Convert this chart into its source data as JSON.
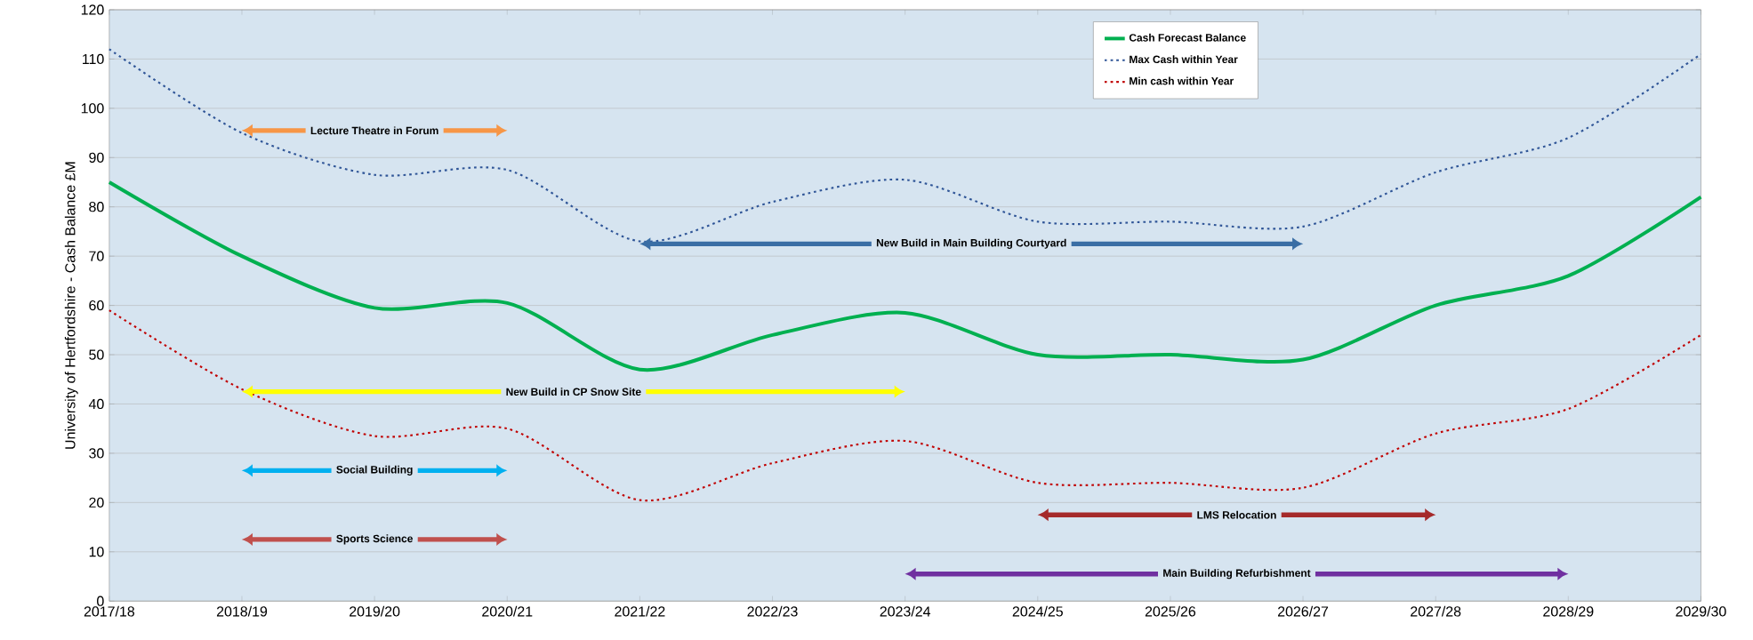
{
  "chart_data": {
    "type": "line",
    "ylabel": "University of Hertfordshire - Cash Balance £M",
    "categories": [
      "2017/18",
      "2018/19",
      "2019/20",
      "2020/21",
      "2021/22",
      "2022/23",
      "2023/24",
      "2024/25",
      "2025/26",
      "2026/27",
      "2027/28",
      "2028/29",
      "2029/30"
    ],
    "ylim": [
      0,
      120
    ],
    "yticks": [
      0,
      10,
      20,
      30,
      40,
      50,
      60,
      70,
      80,
      90,
      100,
      110,
      120
    ],
    "grid": "y",
    "legend": "top",
    "series": [
      {
        "name": "Cash Forecast Balance",
        "color": "#00b050",
        "line_style": "solid",
        "values": [
          85,
          70,
          59.5,
          60.5,
          47,
          54,
          58.5,
          50,
          50,
          49,
          60,
          66,
          82
        ]
      },
      {
        "name": "Max Cash within Year",
        "color": "#2f5597",
        "line_style": "dotted",
        "values": [
          112,
          95,
          86.5,
          87.5,
          73,
          81,
          85.5,
          77,
          77,
          76,
          87,
          94,
          111
        ]
      },
      {
        "name": "Min cash within Year",
        "color": "#c00000",
        "line_style": "dotted",
        "values": [
          59,
          43,
          33.5,
          35,
          20.5,
          28,
          32.5,
          24,
          24,
          23,
          34,
          39,
          54
        ]
      },
      {
        "name": "Lecture Theatre in Forum",
        "color": "#f79646",
        "line_style": "solid",
        "marker": "triangle",
        "x": [
          "2018/19",
          "2020/21"
        ],
        "values": [
          95.5,
          95.5
        ]
      },
      {
        "name": "New Build in Main Building Courtyard",
        "color": "#3a6ea5",
        "line_style": "solid",
        "marker": "triangle",
        "x": [
          "2021/22",
          "2026/27"
        ],
        "values": [
          72.5,
          72.5
        ]
      },
      {
        "name": "New Build in CP Snow Site",
        "color": "#ffff00",
        "line_style": "solid",
        "marker": "triangle",
        "x": [
          "2018/19",
          "2023/24"
        ],
        "values": [
          42.5,
          42.5
        ]
      },
      {
        "name": "Social Building",
        "color": "#00b0f0",
        "line_style": "solid",
        "marker": "triangle",
        "x": [
          "2018/19",
          "2020/21"
        ],
        "values": [
          26.5,
          26.5
        ]
      },
      {
        "name": "Sports Science",
        "color": "#c0504d",
        "line_style": "solid",
        "marker": "triangle",
        "x": [
          "2018/19",
          "2020/21"
        ],
        "values": [
          12.5,
          12.5
        ]
      },
      {
        "name": "LMS Relocation",
        "color": "#a52a2a",
        "line_style": "solid",
        "marker": "triangle",
        "x": [
          "2024/25",
          "2027/28"
        ],
        "values": [
          17.5,
          17.5
        ]
      },
      {
        "name": "Main Building Refurbishment",
        "color": "#7030a0",
        "line_style": "solid",
        "marker": "triangle",
        "x": [
          "2023/24",
          "2028/29"
        ],
        "values": [
          5.5,
          5.5
        ]
      }
    ]
  }
}
